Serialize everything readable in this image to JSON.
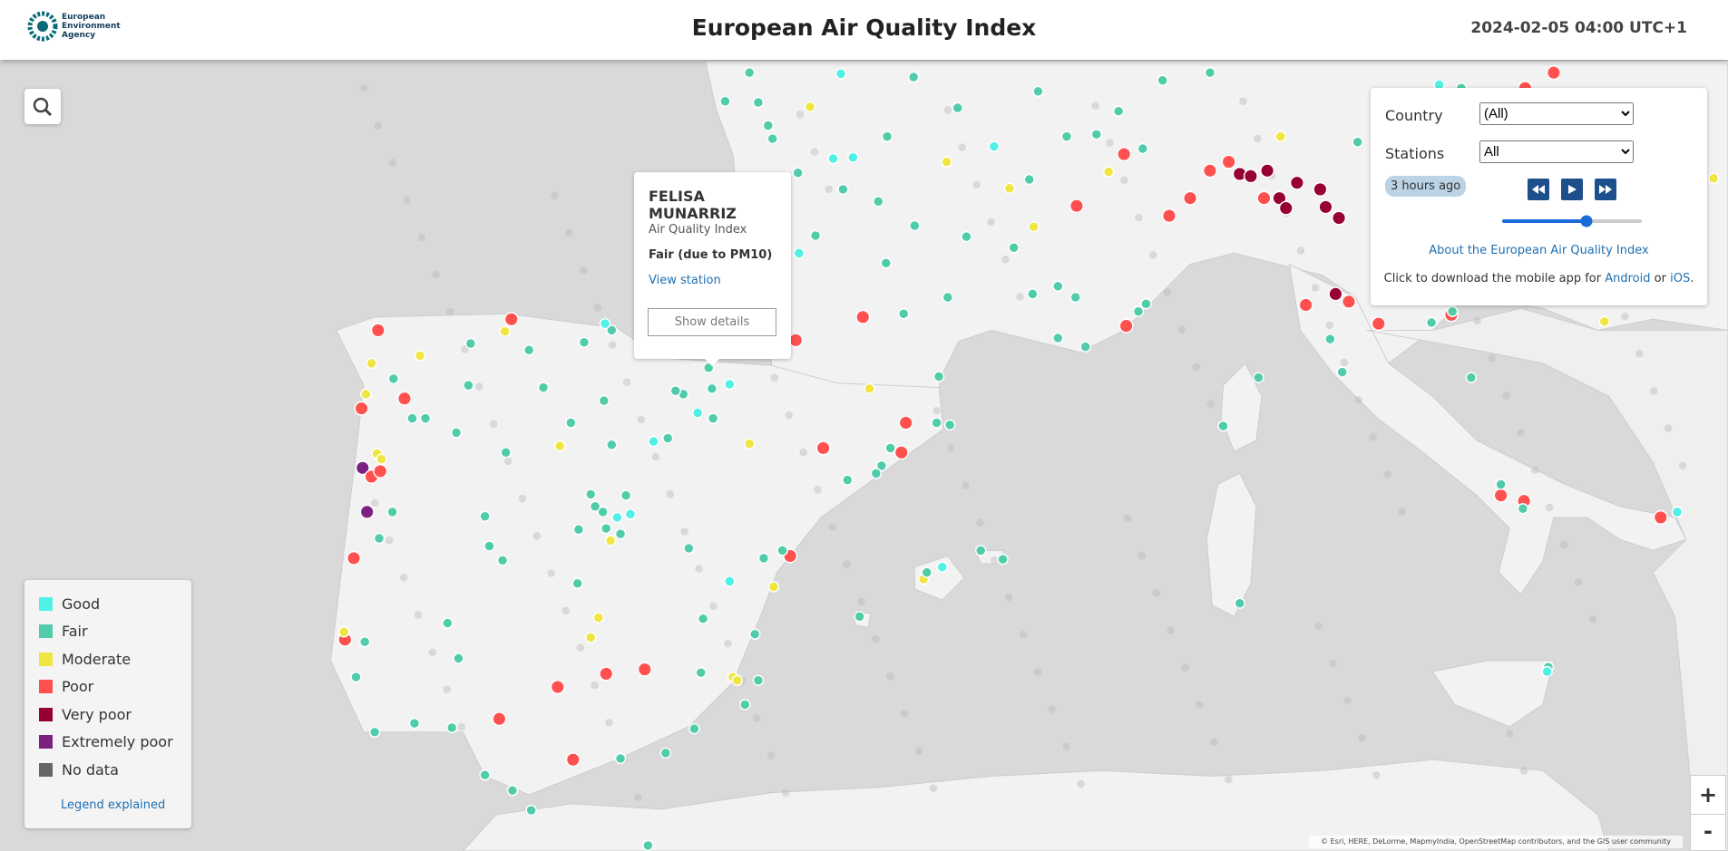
{
  "header": {
    "logo_lines": [
      "European",
      "Environment",
      "Agency"
    ],
    "title": "European Air Quality Index",
    "timestamp": "2024-02-05 04:00 UTC+1"
  },
  "popup": {
    "station": "FELISA MUNARRIZ",
    "label": "Air Quality Index",
    "value": "Fair (due to PM10)",
    "link": "View station",
    "button": "Show details"
  },
  "controls": {
    "country_label": "Country",
    "country_value": "(All)",
    "stations_label": "Stations",
    "stations_value": "All",
    "time_ago": "3 hours ago",
    "about": "About the European Air Quality Index",
    "download_text": "Click to download the mobile app for",
    "android": "Android",
    "or": "or",
    "ios": "iOS",
    "end": "."
  },
  "legend": {
    "items": [
      {
        "label": "Good",
        "color": "#50f0e6"
      },
      {
        "label": "Fair",
        "color": "#50ccaa"
      },
      {
        "label": "Moderate",
        "color": "#f0e641"
      },
      {
        "label": "Poor",
        "color": "#ff5050"
      },
      {
        "label": "Very poor",
        "color": "#960032"
      },
      {
        "label": "Extremely poor",
        "color": "#7d2181"
      },
      {
        "label": "No data",
        "color": "#666666"
      }
    ],
    "link": "Legend explained"
  },
  "attribution": "© Esri, HERE, DeLorme, MapmyIndia, OpenStreetMap contributors, and the GIS user community",
  "zoom": {
    "in": "+",
    "out": "-"
  }
}
